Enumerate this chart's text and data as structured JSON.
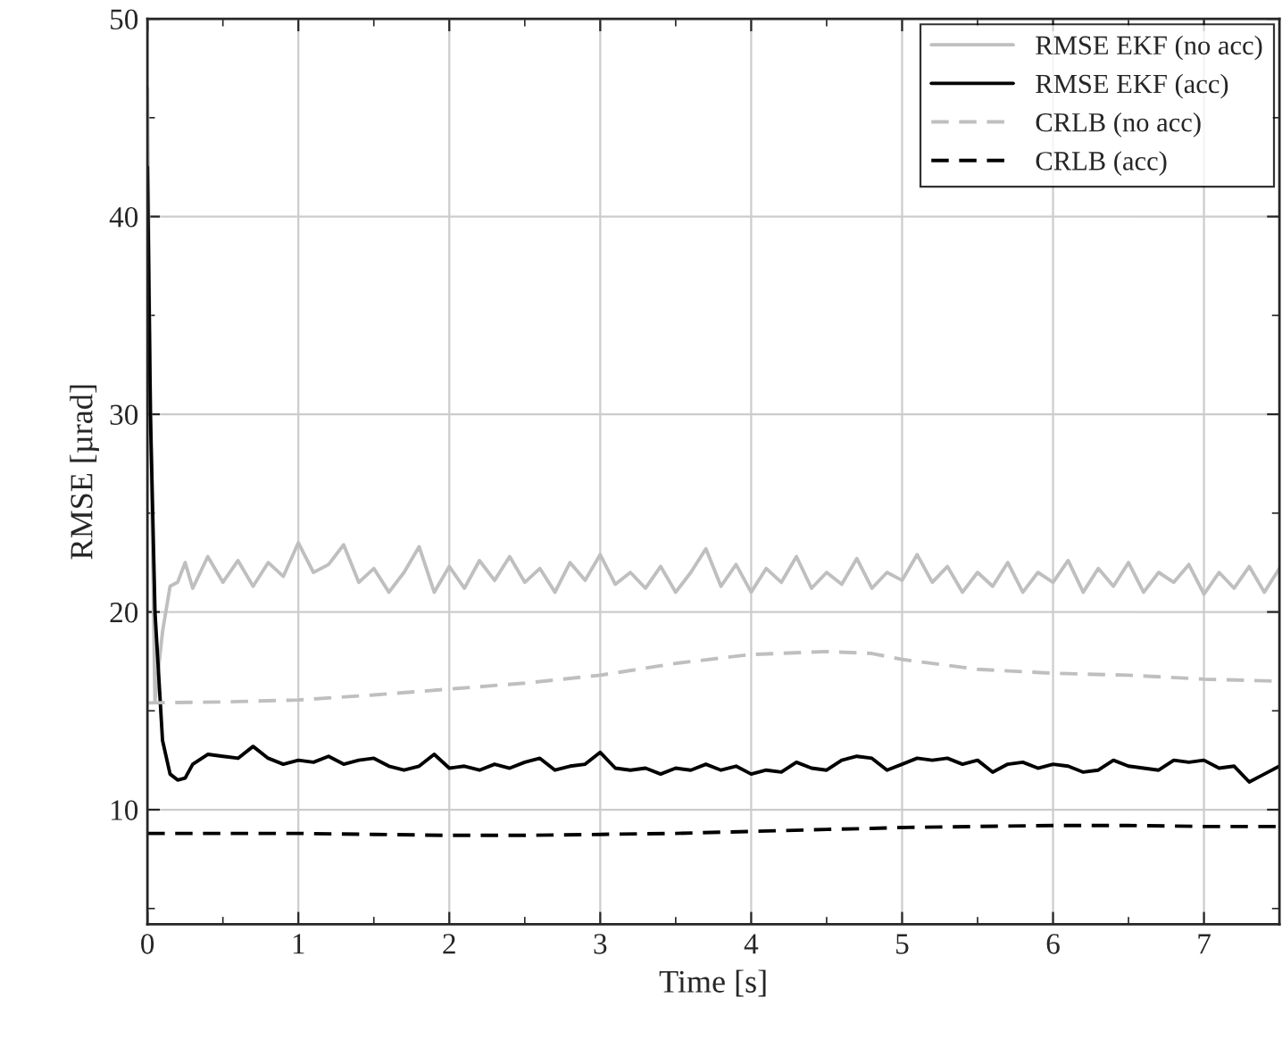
{
  "chart_data": {
    "type": "line",
    "xlabel": "Time [s]",
    "ylabel": "RMSE [µrad]",
    "xlim": [
      0,
      7.5
    ],
    "ylim": [
      4.2,
      50
    ],
    "xticks": [
      0,
      {
        "value": 0.5,
        "label": null
      },
      1,
      {
        "value": 1.5,
        "label": null
      },
      2,
      {
        "value": 2.5,
        "label": null
      },
      3,
      {
        "value": 3.5,
        "label": null
      },
      4,
      {
        "value": 4.5,
        "label": null
      },
      5,
      {
        "value": 5.5,
        "label": null
      },
      6,
      {
        "value": 6.5,
        "label": null
      },
      7
    ],
    "yticks": [
      {
        "value": 5,
        "label": null
      },
      10,
      {
        "value": 15,
        "label": null
      },
      20,
      {
        "value": 25,
        "label": null
      },
      30,
      {
        "value": 35,
        "label": null
      },
      40,
      {
        "value": 45,
        "label": null
      },
      50
    ],
    "grid": true,
    "legend": "top right",
    "x": [
      0,
      0.02,
      0.05,
      0.1,
      0.15,
      0.2,
      0.25,
      0.3,
      0.4,
      0.5,
      0.6,
      0.7,
      0.8,
      0.9,
      1.0,
      1.1,
      1.2,
      1.3,
      1.4,
      1.5,
      1.6,
      1.7,
      1.8,
      1.9,
      2.0,
      2.1,
      2.2,
      2.3,
      2.4,
      2.5,
      2.6,
      2.7,
      2.8,
      2.9,
      3.0,
      3.1,
      3.2,
      3.3,
      3.4,
      3.5,
      3.6,
      3.7,
      3.8,
      3.9,
      4.0,
      4.1,
      4.2,
      4.3,
      4.4,
      4.5,
      4.6,
      4.7,
      4.8,
      4.9,
      5.0,
      5.1,
      5.2,
      5.3,
      5.4,
      5.5,
      5.6,
      5.7,
      5.8,
      5.9,
      6.0,
      6.1,
      6.2,
      6.3,
      6.4,
      6.5,
      6.6,
      6.7,
      6.8,
      6.9,
      7.0,
      7.1,
      7.2,
      7.3,
      7.4,
      7.5
    ],
    "series": [
      {
        "name": "RMSE EKF (no acc)",
        "color": "#bfbfbf",
        "line_style": "solid",
        "values": [
          46.5,
          30,
          15.5,
          19,
          21.3,
          21.5,
          22.5,
          21.2,
          22.8,
          21.5,
          22.6,
          21.3,
          22.5,
          21.8,
          23.5,
          22.0,
          22.4,
          23.4,
          21.5,
          22.2,
          21.0,
          22.0,
          23.3,
          21.0,
          22.3,
          21.2,
          22.6,
          21.6,
          22.8,
          21.5,
          22.2,
          21.0,
          22.5,
          21.6,
          22.9,
          21.4,
          22.0,
          21.2,
          22.3,
          21.0,
          22.0,
          23.2,
          21.3,
          22.4,
          21.0,
          22.2,
          21.5,
          22.8,
          21.2,
          22.0,
          21.4,
          22.7,
          21.2,
          22.0,
          21.6,
          22.9,
          21.5,
          22.3,
          21.0,
          22.0,
          21.3,
          22.5,
          21.0,
          22.0,
          21.5,
          22.6,
          21.0,
          22.2,
          21.3,
          22.5,
          21.0,
          22.0,
          21.5,
          22.4,
          20.9,
          22.0,
          21.2,
          22.3,
          21.0,
          22.2
        ]
      },
      {
        "name": "RMSE EKF (acc)",
        "color": "#000000",
        "line_style": "solid",
        "values": [
          42.5,
          30,
          20,
          13.5,
          11.8,
          11.5,
          11.6,
          12.3,
          12.8,
          12.7,
          12.6,
          13.2,
          12.6,
          12.3,
          12.5,
          12.4,
          12.7,
          12.3,
          12.5,
          12.6,
          12.2,
          12.0,
          12.2,
          12.8,
          12.1,
          12.2,
          12.0,
          12.3,
          12.1,
          12.4,
          12.6,
          12.0,
          12.2,
          12.3,
          12.9,
          12.1,
          12.0,
          12.1,
          11.8,
          12.1,
          12.0,
          12.3,
          12.0,
          12.2,
          11.8,
          12.0,
          11.9,
          12.4,
          12.1,
          12.0,
          12.5,
          12.7,
          12.6,
          12.0,
          12.3,
          12.6,
          12.5,
          12.6,
          12.3,
          12.5,
          11.9,
          12.3,
          12.4,
          12.1,
          12.3,
          12.2,
          11.9,
          12.0,
          12.5,
          12.2,
          12.1,
          12.0,
          12.5,
          12.4,
          12.5,
          12.1,
          12.2,
          11.4,
          11.8,
          12.2
        ]
      },
      {
        "name": "CRLB (no acc)",
        "color": "#bfbfbf",
        "line_style": "dashed",
        "x": [
          0,
          0.5,
          1,
          1.5,
          2,
          2.5,
          3,
          3.5,
          4,
          4.5,
          4.8,
          5,
          5.5,
          6,
          6.5,
          7,
          7.5
        ],
        "values": [
          15.4,
          15.45,
          15.55,
          15.8,
          16.1,
          16.4,
          16.8,
          17.4,
          17.85,
          18.0,
          17.9,
          17.6,
          17.1,
          16.9,
          16.8,
          16.6,
          16.5
        ]
      },
      {
        "name": "CRLB (acc)",
        "color": "#000000",
        "line_style": "dashed",
        "x": [
          0,
          0.5,
          1,
          1.5,
          2,
          2.5,
          3,
          3.5,
          4,
          4.5,
          4.8,
          5,
          5.5,
          6,
          6.5,
          7,
          7.5
        ],
        "values": [
          8.8,
          8.8,
          8.8,
          8.75,
          8.7,
          8.7,
          8.75,
          8.8,
          8.9,
          9.0,
          9.05,
          9.1,
          9.15,
          9.2,
          9.2,
          9.15,
          9.15
        ]
      }
    ]
  }
}
